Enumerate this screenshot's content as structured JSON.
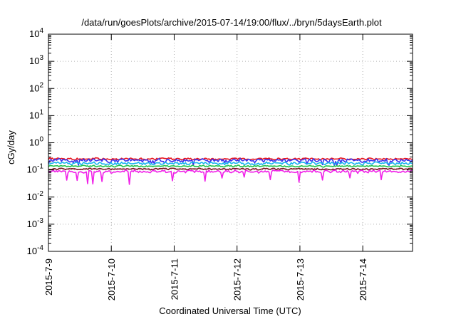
{
  "chart_data": {
    "type": "line",
    "title": "/data/run/goesPlots/archive/2015-07-14/19:00/flux/../bryn/5daysEarth.plot",
    "xlabel": "Coordinated Universal Time (UTC)",
    "ylabel": "cGy/day",
    "yscale": "log",
    "ylim": [
      0.0001,
      10000
    ],
    "xlim": [
      "2015-07-09T00:00",
      "2015-07-14T19:00"
    ],
    "grid": true,
    "x_ticks": [
      "2015-7-9",
      "2015-7-10",
      "2015-7-11",
      "2015-7-12",
      "2015-7-13",
      "2015-7-14"
    ],
    "y_ticks": [
      {
        "base": "10",
        "exp": "-4"
      },
      {
        "base": "10",
        "exp": "-3"
      },
      {
        "base": "10",
        "exp": "-2"
      },
      {
        "base": "10",
        "exp": "-1"
      },
      {
        "base": "10",
        "exp": "0"
      },
      {
        "base": "10",
        "exp": "1"
      },
      {
        "base": "10",
        "exp": "2"
      },
      {
        "base": "10",
        "exp": "3"
      },
      {
        "base": "10",
        "exp": "4"
      }
    ],
    "series": [
      {
        "color": "#e8141e",
        "level": 0.255,
        "spread": 0.06,
        "dips": false
      },
      {
        "color": "#3a33ee",
        "level": 0.225,
        "spread": 0.11,
        "dips": false
      },
      {
        "color": "#18b4ee",
        "level": 0.175,
        "spread": 0.08,
        "dips": false
      },
      {
        "color": "#22c24a",
        "level": 0.138,
        "spread": 0.05,
        "dips": false
      },
      {
        "color": "#7a1420",
        "level": 0.108,
        "spread": 0.05,
        "dips": false
      },
      {
        "color": "#f020e8",
        "level": 0.088,
        "spread": 0.09,
        "dips": true
      }
    ]
  }
}
